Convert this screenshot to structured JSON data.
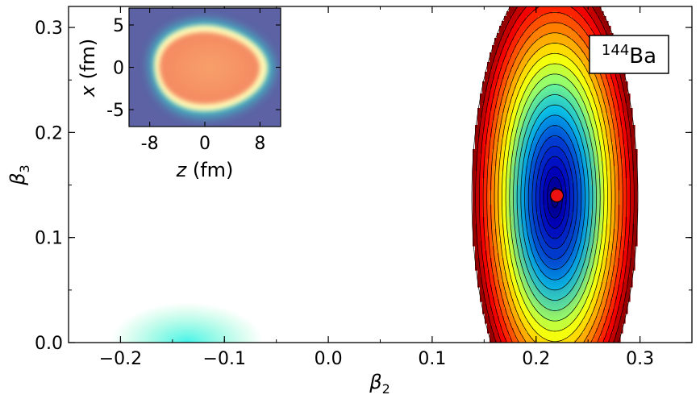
{
  "chart_data": [
    {
      "type": "heatmap",
      "subtype": "potential-energy-surface-contour",
      "title": "",
      "xlabel": "β",
      "xlabel_sub": "2",
      "ylabel": "β",
      "ylabel_sub": "3",
      "xlim": [
        -0.25,
        0.35
      ],
      "ylim": [
        0.0,
        0.32
      ],
      "xticks": [
        -0.2,
        -0.1,
        0.0,
        0.1,
        0.2,
        0.3
      ],
      "xtick_labels": [
        "−0.2",
        "−0.1",
        "0.0",
        "0.1",
        "0.2",
        "0.3"
      ],
      "yticks": [
        0.0,
        0.1,
        0.2,
        0.3
      ],
      "ytick_labels": [
        "0.0",
        "0.1",
        "0.2",
        "0.3"
      ],
      "colormap": "jet",
      "grid": false,
      "nucleus_label": {
        "mass": "144",
        "element": "Ba",
        "placement": "top-right"
      },
      "minimum_marker": {
        "x": 0.22,
        "y": 0.14,
        "color": "#ee1111"
      },
      "shallow_minimum": {
        "x": -0.13,
        "y": 0.0
      },
      "contour_levels": 22
    },
    {
      "type": "heatmap",
      "subtype": "density-inset",
      "xlabel": "z (fm)",
      "xlabel_var": "z",
      "xlabel_unit": " (fm)",
      "ylabel": "x (fm)",
      "ylabel_var": "x",
      "ylabel_unit": " (fm)",
      "xlim": [
        -11,
        11
      ],
      "ylim": [
        -7,
        7
      ],
      "xticks": [
        -8,
        0,
        8
      ],
      "xtick_labels": [
        "-8",
        "0",
        "8"
      ],
      "yticks": [
        -5,
        0,
        5
      ],
      "ytick_labels": [
        "-5",
        "0",
        "5"
      ],
      "placement": "top-left",
      "colors": {
        "background": "#5c62a4",
        "rim": "#fff8b4",
        "core": "#f48a62"
      }
    }
  ]
}
